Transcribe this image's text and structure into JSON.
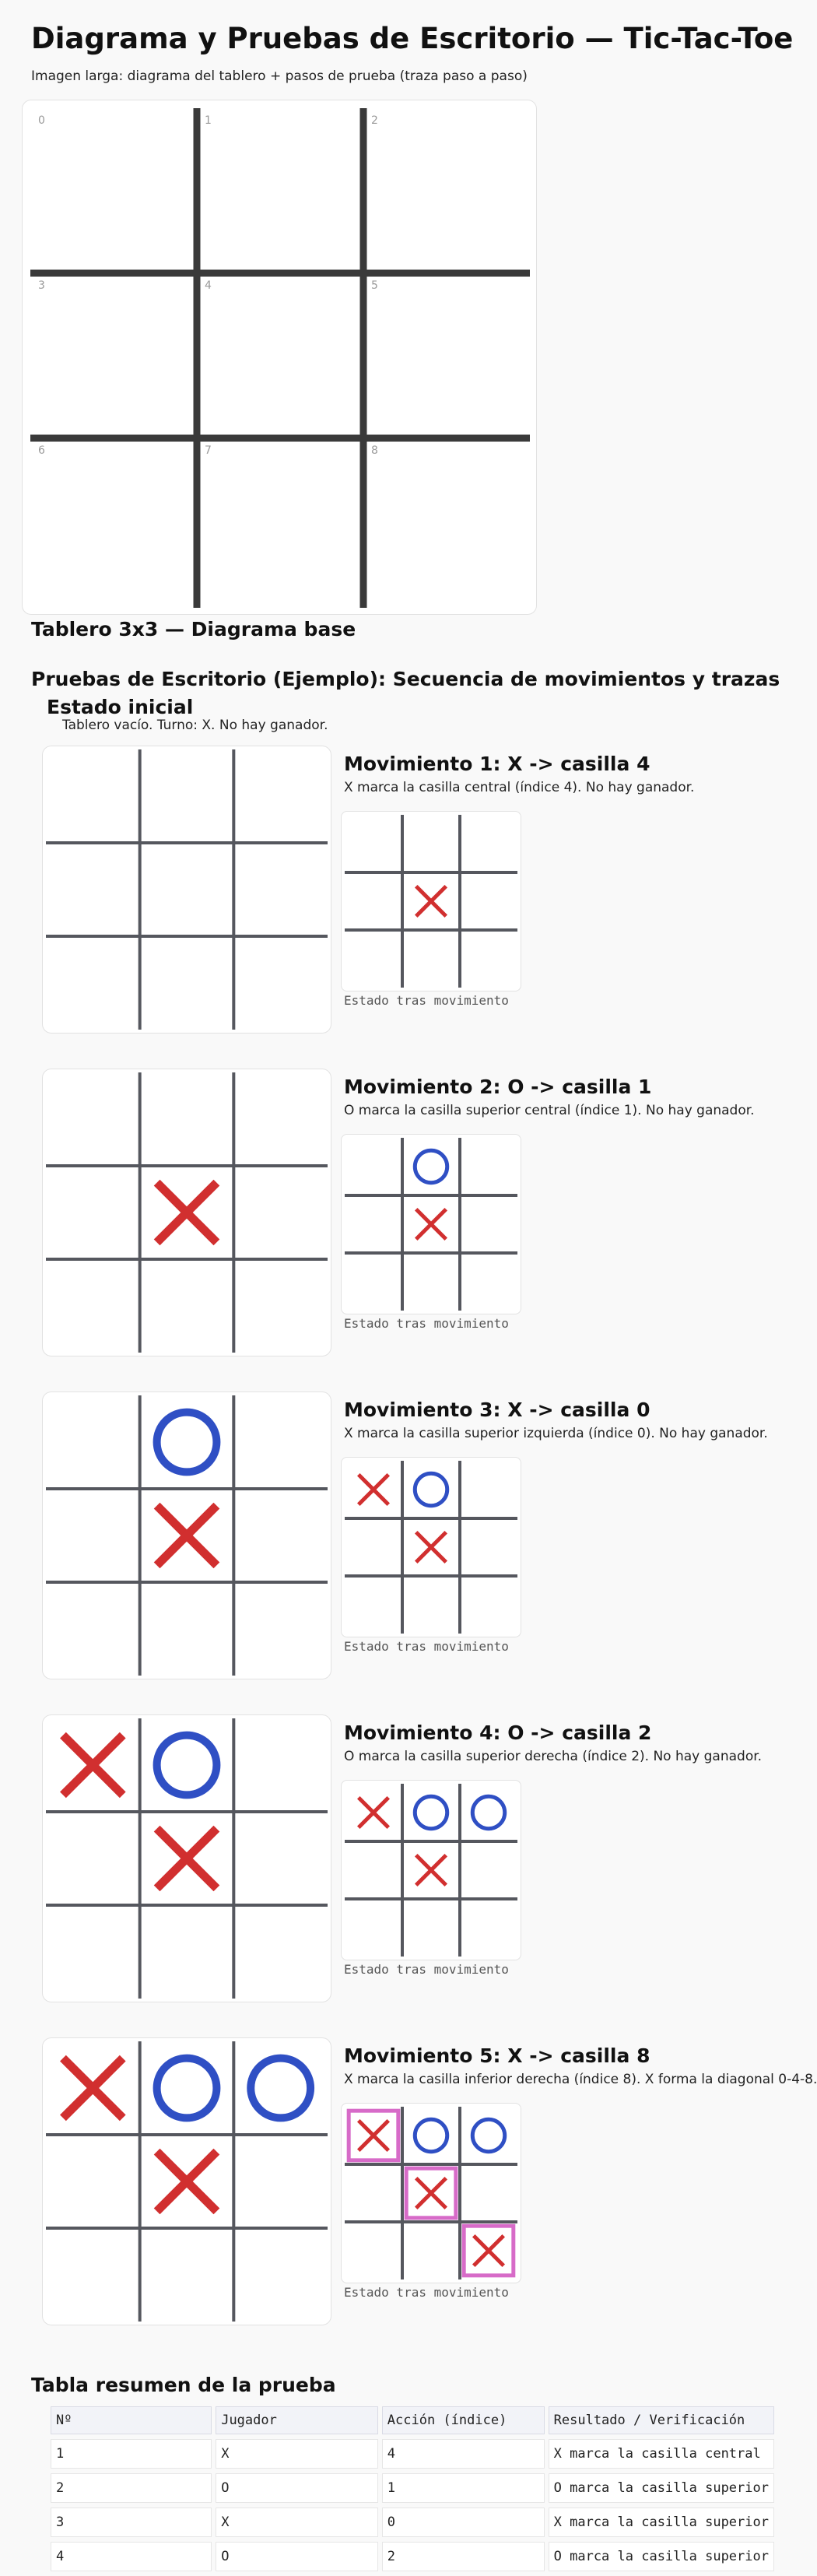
{
  "title": "Diagrama y Pruebas de Escritorio — Tic-Tac-Toe",
  "subtitle": "Imagen larga: diagrama del tablero + pasos de prueba (traza paso a paso)",
  "base_board": {
    "cell_labels": [
      "0",
      "1",
      "2",
      "3",
      "4",
      "5",
      "6",
      "7",
      "8"
    ],
    "caption": "Tablero 3x3 — Diagrama base"
  },
  "tests_heading": "Pruebas de Escritorio (Ejemplo): Secuencia de movimientos y trazas",
  "initial": {
    "heading": "Estado inicial",
    "text": "Tablero vacío. Turno: X. No hay ganador."
  },
  "colors": {
    "x": "#d12f2f",
    "o": "#2f4fc4",
    "highlight": "#d76bc8",
    "grid": "#55575e",
    "base_grid": "#3a3a3a"
  },
  "moves": [
    {
      "title": "Movimiento 1: X -> casilla 4",
      "desc": "X marca la casilla central (índice 4). No hay ganador.",
      "before": [
        "",
        "",
        "",
        "",
        "",
        "",
        "",
        "",
        ""
      ],
      "after": [
        "",
        "",
        "",
        "",
        "X",
        "",
        "",
        "",
        ""
      ],
      "highlight": [],
      "caption": "Estado tras movimiento"
    },
    {
      "title": "Movimiento 2: O -> casilla 1",
      "desc": "O marca la casilla superior central (índice 1). No hay ganador.",
      "before": [
        "",
        "",
        "",
        "",
        "X",
        "",
        "",
        "",
        ""
      ],
      "after": [
        "",
        "O",
        "",
        "",
        "X",
        "",
        "",
        "",
        ""
      ],
      "highlight": [],
      "caption": "Estado tras movimiento"
    },
    {
      "title": "Movimiento 3: X -> casilla 0",
      "desc": "X marca la casilla superior izquierda (índice 0). No hay ganador.",
      "before": [
        "",
        "O",
        "",
        "",
        "X",
        "",
        "",
        "",
        ""
      ],
      "after": [
        "X",
        "O",
        "",
        "",
        "X",
        "",
        "",
        "",
        ""
      ],
      "highlight": [],
      "caption": "Estado tras movimiento"
    },
    {
      "title": "Movimiento 4: O -> casilla 2",
      "desc": "O marca la casilla superior derecha (índice 2). No hay ganador.",
      "before": [
        "X",
        "O",
        "",
        "",
        "X",
        "",
        "",
        "",
        ""
      ],
      "after": [
        "X",
        "O",
        "O",
        "",
        "X",
        "",
        "",
        "",
        ""
      ],
      "highlight": [],
      "caption": "Estado tras movimiento"
    },
    {
      "title": "Movimiento 5: X -> casilla 8",
      "desc": "X marca la casilla inferior derecha (índice 8). X forma la diagonal 0-4-8.",
      "before": [
        "X",
        "O",
        "O",
        "",
        "X",
        "",
        "",
        "",
        ""
      ],
      "after": [
        "X",
        "O",
        "O",
        "",
        "X",
        "",
        "",
        "",
        "X"
      ],
      "highlight": [
        0,
        4,
        8
      ],
      "caption": "Estado tras movimiento"
    }
  ],
  "summary": {
    "heading": "Tabla resumen de la prueba",
    "headers": [
      "Nº",
      "Jugador",
      "Acción (índice)",
      "Resultado / Verificación"
    ],
    "rows": [
      [
        "1",
        "X",
        "4",
        "X marca la casilla central"
      ],
      [
        "2",
        "O",
        "1",
        "O marca la casilla superior"
      ],
      [
        "3",
        "X",
        "0",
        "X marca la casilla superior"
      ],
      [
        "4",
        "O",
        "2",
        "O marca la casilla superior"
      ]
    ]
  }
}
